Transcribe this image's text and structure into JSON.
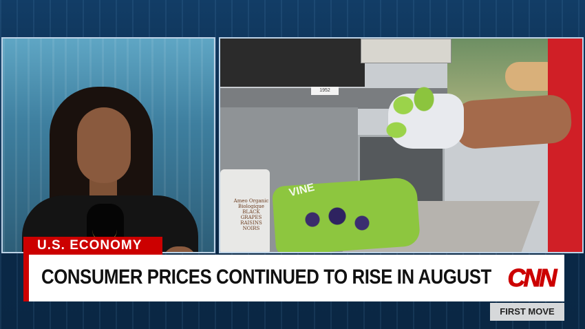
{
  "lower_third": {
    "topic": "U.S. ECONOMY",
    "headline": "CONSUMER PRICES CONTINUED TO RISE IN AUGUST",
    "network_logo_text": "CNN",
    "show_name": "FIRST MOVE"
  },
  "scene": {
    "right_panel": {
      "cup_label": "Ameo Organic Biologique BLACK GRAPES RAISINS NOIRS",
      "bag_text": "VINE",
      "shelf_label": "1952"
    }
  },
  "colors": {
    "accent": "#cc0000",
    "headline_bg": "#ffffff",
    "show_tag_bg": "#d6d8da",
    "backdrop": "#0b2a4a"
  }
}
